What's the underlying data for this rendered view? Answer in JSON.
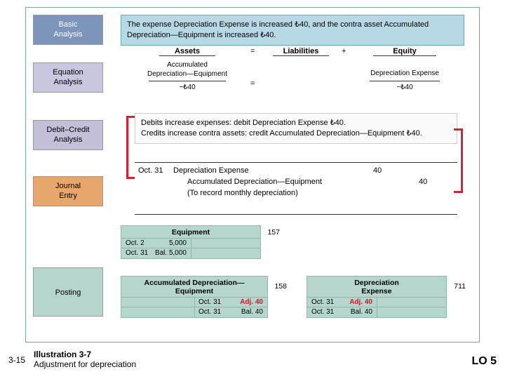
{
  "labels": {
    "basic": "Basic\nAnalysis",
    "equation": "Equation\nAnalysis",
    "debitcredit": "Debit–Credit\nAnalysis",
    "journal": "Journal\nEntry",
    "posting": "Posting"
  },
  "basic_text": "The expense Depreciation Expense is increased ₺40, and the contra asset Accumulated Depreciation—Equipment is increased ₺40.",
  "equation": {
    "assets": "Assets",
    "liabilities": "Liabilities",
    "equity": "Equity",
    "plus": "+",
    "equals": "=",
    "accdep_label": "Accumulated\nDepreciation—Equipment",
    "accdep_val": "−₺40",
    "depexp_label": "Depreciation Expense",
    "depexp_val": "−₺40"
  },
  "debit_text": "Debits increase expenses: debit Depreciation Expense ₺40.\nCredits increase contra assets: credit Accumulated Depreciation—Equipment ₺40.",
  "journal": {
    "date": "Oct. 31",
    "line1": "Depreciation Expense",
    "line2": "Accumulated Depreciation—Equipment",
    "memo": "(To record monthly depreciation)",
    "debit": "40",
    "credit": "40"
  },
  "t_equipment": {
    "title": "Equipment",
    "acctno": "157",
    "l1_date": "Oct. 2",
    "l1_amt": "5,000",
    "l2_date": "Oct. 31",
    "l2_bal": "Bal. 5,000"
  },
  "t_accdep": {
    "title": "Accumulated Depreciation—\nEquipment",
    "acctno": "158",
    "r1_date": "Oct. 31",
    "r1_amt": "Adj. 40",
    "r2_date": "Oct. 31",
    "r2_bal": "Bal.  40"
  },
  "t_depexp": {
    "title": "Depreciation\nExpense",
    "acctno": "711",
    "l1_date": "Oct. 31",
    "l1_amt": "Adj. 40",
    "l2_date": "Oct. 31",
    "l2_bal": "Bal.  40"
  },
  "footer": {
    "page": "3-15",
    "illus_no": "Illustration 3-7",
    "illus_caption": "Adjustment for depreciation",
    "lo": "LO 5"
  },
  "colors": {
    "basic": "#7d94bb",
    "equation": "#c9c6e0",
    "debitcredit": "#c3bfd8",
    "journal": "#e7a66a",
    "posting": "#b6d5cd"
  }
}
